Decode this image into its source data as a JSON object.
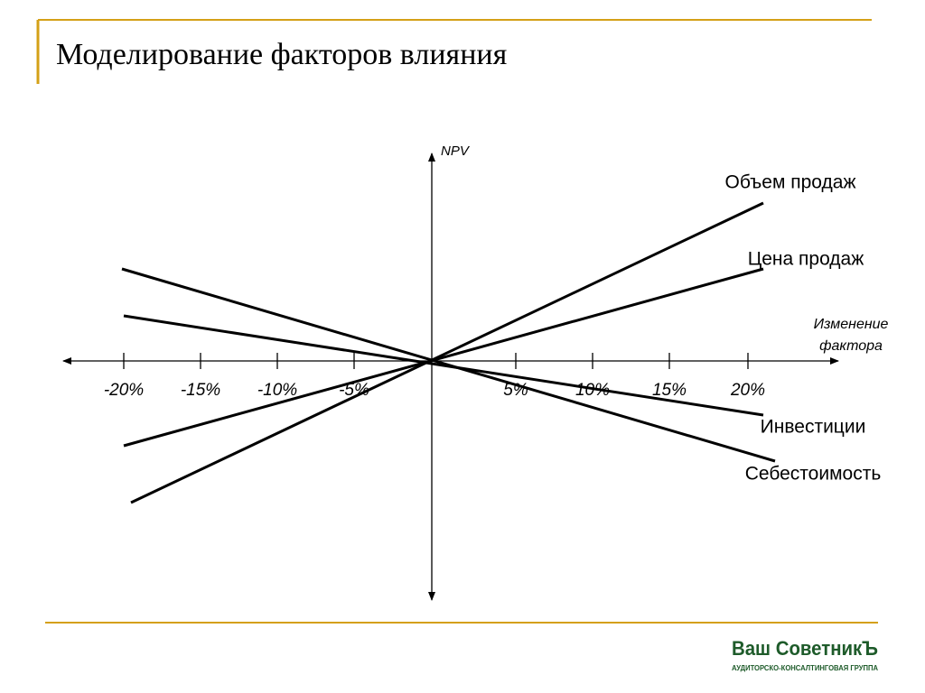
{
  "header": {
    "title": "Моделирование факторов влияния"
  },
  "diagram": {
    "y_axis_label": "NPV",
    "x_axis_label": [
      "Изменение",
      "фактора"
    ],
    "x_ticks": [
      "-20%",
      "-15%",
      "-10%",
      "-5%",
      "5%",
      "10%",
      "15%",
      "20%"
    ],
    "lines": [
      "Объем продаж",
      "Цена продаж",
      "Инвестиции",
      "Себестоимость"
    ]
  },
  "footer": {
    "logo": "Ваш СоветникЪ",
    "logo_subtitle": "АУДИТОРСКО-КОНСАЛТИНГОВАЯ ГРУППА"
  }
}
